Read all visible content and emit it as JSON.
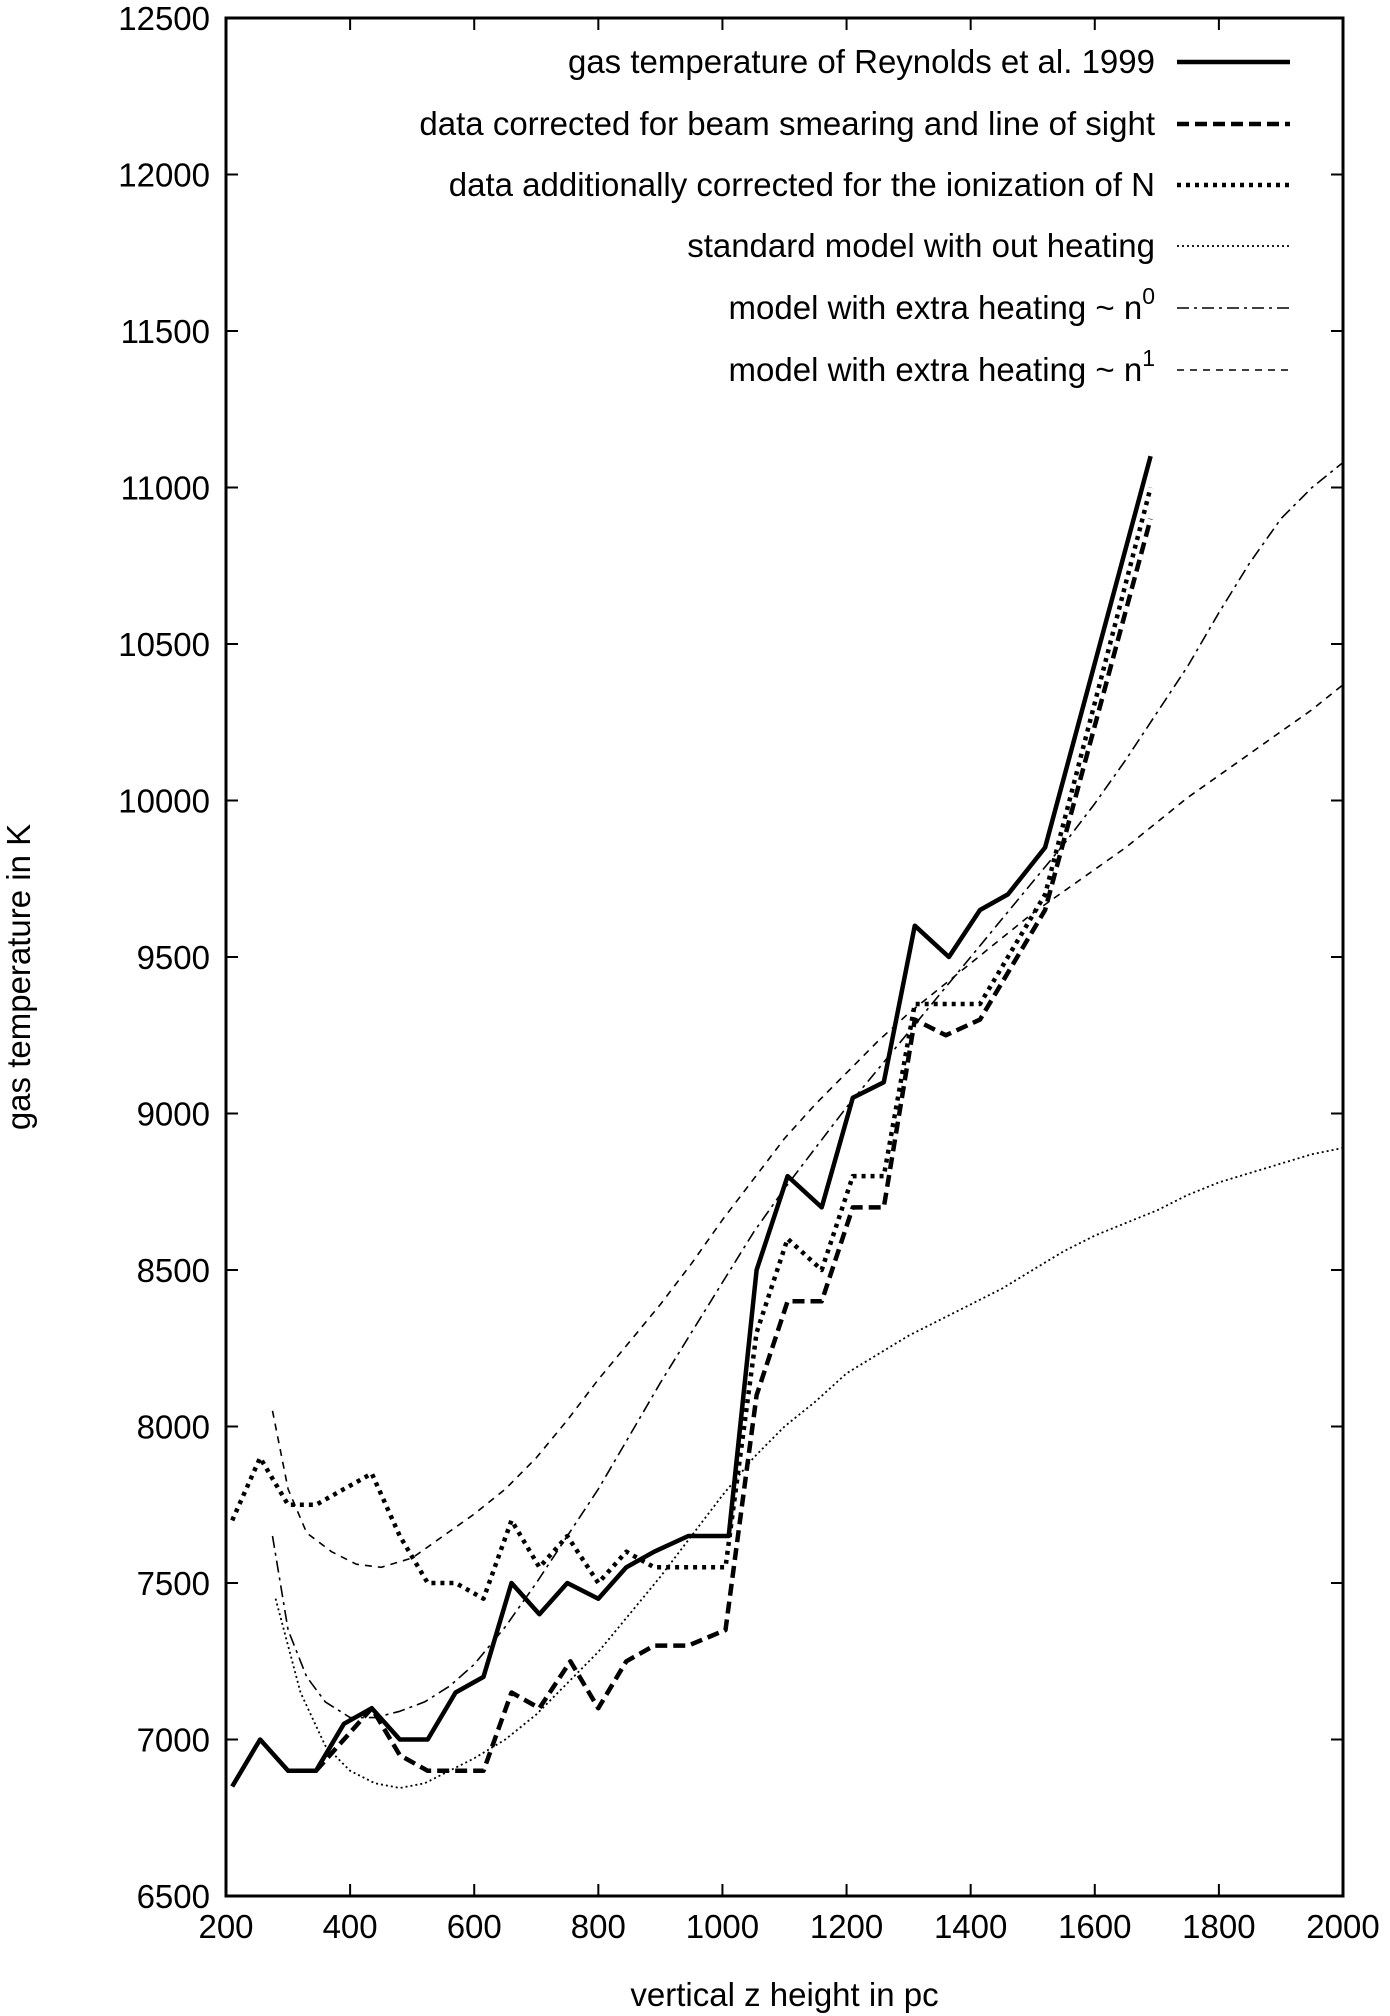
{
  "chart_data": {
    "type": "line",
    "title": "",
    "xlabel": "vertical z height in pc",
    "ylabel": "gas temperature in K",
    "xlim": [
      200,
      2000
    ],
    "ylim": [
      6500,
      12500
    ],
    "xticks": [
      200,
      400,
      600,
      800,
      1000,
      1200,
      1400,
      1600,
      1800,
      2000
    ],
    "yticks": [
      6500,
      7000,
      7500,
      8000,
      8500,
      9000,
      9500,
      10000,
      10500,
      11000,
      11500,
      12000,
      12500
    ],
    "grid": false,
    "legend_position": "top-right",
    "series": [
      {
        "name": "gas temperature of Reynolds et al. 1999",
        "style": "solid-thick",
        "x": [
          210,
          255,
          300,
          345,
          390,
          435,
          480,
          525,
          570,
          615,
          660,
          705,
          750,
          800,
          845,
          890,
          945,
          1010,
          1055,
          1105,
          1160,
          1210,
          1260,
          1310,
          1365,
          1415,
          1460,
          1520,
          1690
        ],
        "y": [
          6850,
          7000,
          6900,
          6900,
          7050,
          7100,
          7000,
          7000,
          7150,
          7200,
          7500,
          7400,
          7500,
          7450,
          7550,
          7600,
          7650,
          7650,
          8500,
          8800,
          8700,
          9050,
          9100,
          9600,
          9500,
          9650,
          9700,
          9850,
          11100
        ]
      },
      {
        "name": "data corrected for beam smearing and line of sight",
        "style": "dashed-thick",
        "x": [
          345,
          390,
          435,
          480,
          525,
          570,
          615,
          660,
          705,
          755,
          800,
          845,
          890,
          945,
          1005,
          1055,
          1105,
          1160,
          1210,
          1260,
          1310,
          1360,
          1415,
          1460,
          1520,
          1690
        ],
        "y": [
          6900,
          7000,
          7100,
          6950,
          6900,
          6900,
          6900,
          7150,
          7100,
          7250,
          7100,
          7250,
          7300,
          7300,
          7350,
          8100,
          8400,
          8400,
          8700,
          8700,
          9300,
          9250,
          9300,
          9450,
          9650,
          10900
        ]
      },
      {
        "name": "data additionally corrected for the ionization of N",
        "style": "dotted-thick",
        "x": [
          210,
          255,
          300,
          345,
          390,
          435,
          480,
          525,
          570,
          615,
          660,
          705,
          750,
          800,
          845,
          890,
          945,
          1005,
          1055,
          1105,
          1160,
          1210,
          1260,
          1310,
          1360,
          1415,
          1460,
          1520,
          1690
        ],
        "y": [
          7700,
          7900,
          7750,
          7750,
          7800,
          7850,
          7650,
          7500,
          7500,
          7450,
          7700,
          7550,
          7650,
          7500,
          7600,
          7550,
          7550,
          7550,
          8300,
          8600,
          8500,
          8800,
          8800,
          9350,
          9350,
          9350,
          9500,
          9700,
          11000
        ]
      },
      {
        "name": "standard model with out heating",
        "style": "dotted-thin",
        "x": [
          280,
          320,
          360,
          400,
          440,
          480,
          520,
          560,
          600,
          650,
          700,
          750,
          800,
          850,
          900,
          950,
          1000,
          1050,
          1100,
          1150,
          1200,
          1250,
          1300,
          1350,
          1400,
          1450,
          1500,
          1550,
          1600,
          1650,
          1700,
          1750,
          1800,
          1850,
          1900,
          1950,
          2000
        ],
        "y": [
          7450,
          7150,
          6980,
          6900,
          6860,
          6845,
          6860,
          6900,
          6940,
          7000,
          7080,
          7180,
          7280,
          7400,
          7520,
          7650,
          7780,
          7900,
          8000,
          8080,
          8170,
          8230,
          8290,
          8340,
          8390,
          8440,
          8500,
          8560,
          8610,
          8650,
          8690,
          8740,
          8780,
          8810,
          8840,
          8870,
          8890
        ]
      },
      {
        "name": "model with extra heating ~ n^0",
        "style": "dash-dot-thin",
        "x": [
          275,
          300,
          330,
          360,
          400,
          440,
          480,
          520,
          560,
          600,
          650,
          700,
          750,
          800,
          850,
          900,
          950,
          1000,
          1050,
          1100,
          1150,
          1200,
          1250,
          1300,
          1350,
          1400,
          1450,
          1500,
          1550,
          1600,
          1650,
          1700,
          1750,
          1800,
          1850,
          1900,
          1950,
          2000
        ],
        "y": [
          7650,
          7350,
          7200,
          7120,
          7070,
          7070,
          7090,
          7120,
          7170,
          7240,
          7360,
          7500,
          7650,
          7800,
          7970,
          8140,
          8300,
          8460,
          8620,
          8760,
          8890,
          9020,
          9140,
          9260,
          9380,
          9500,
          9620,
          9740,
          9860,
          9990,
          10130,
          10280,
          10430,
          10600,
          10760,
          10900,
          11000,
          11080
        ]
      },
      {
        "name": "model with extra heating ~ n^1",
        "style": "dashed-thin",
        "x": [
          275,
          300,
          330,
          370,
          410,
          450,
          500,
          550,
          600,
          650,
          700,
          750,
          800,
          850,
          900,
          950,
          1000,
          1050,
          1100,
          1150,
          1200,
          1250,
          1300,
          1350,
          1400,
          1450,
          1500,
          1550,
          1600,
          1650,
          1700,
          1750,
          1800,
          1850,
          1900,
          1950,
          2000
        ],
        "y": [
          8050,
          7800,
          7660,
          7600,
          7560,
          7550,
          7580,
          7650,
          7720,
          7800,
          7900,
          8020,
          8150,
          8270,
          8390,
          8520,
          8660,
          8790,
          8920,
          9030,
          9130,
          9230,
          9320,
          9400,
          9480,
          9560,
          9640,
          9710,
          9780,
          9850,
          9930,
          10010,
          10080,
          10150,
          10220,
          10290,
          10370
        ]
      }
    ]
  },
  "legend": {
    "entries": [
      {
        "text": "gas temperature of Reynolds et al. 1999"
      },
      {
        "text": "data corrected for beam smearing and line of sight"
      },
      {
        "text": "data additionally corrected for the ionization of N"
      },
      {
        "text": "standard model with out heating"
      },
      {
        "text": "model with extra heating ~ n",
        "sup": "0"
      },
      {
        "text": "model with extra heating ~ n",
        "sup": "1"
      }
    ]
  }
}
